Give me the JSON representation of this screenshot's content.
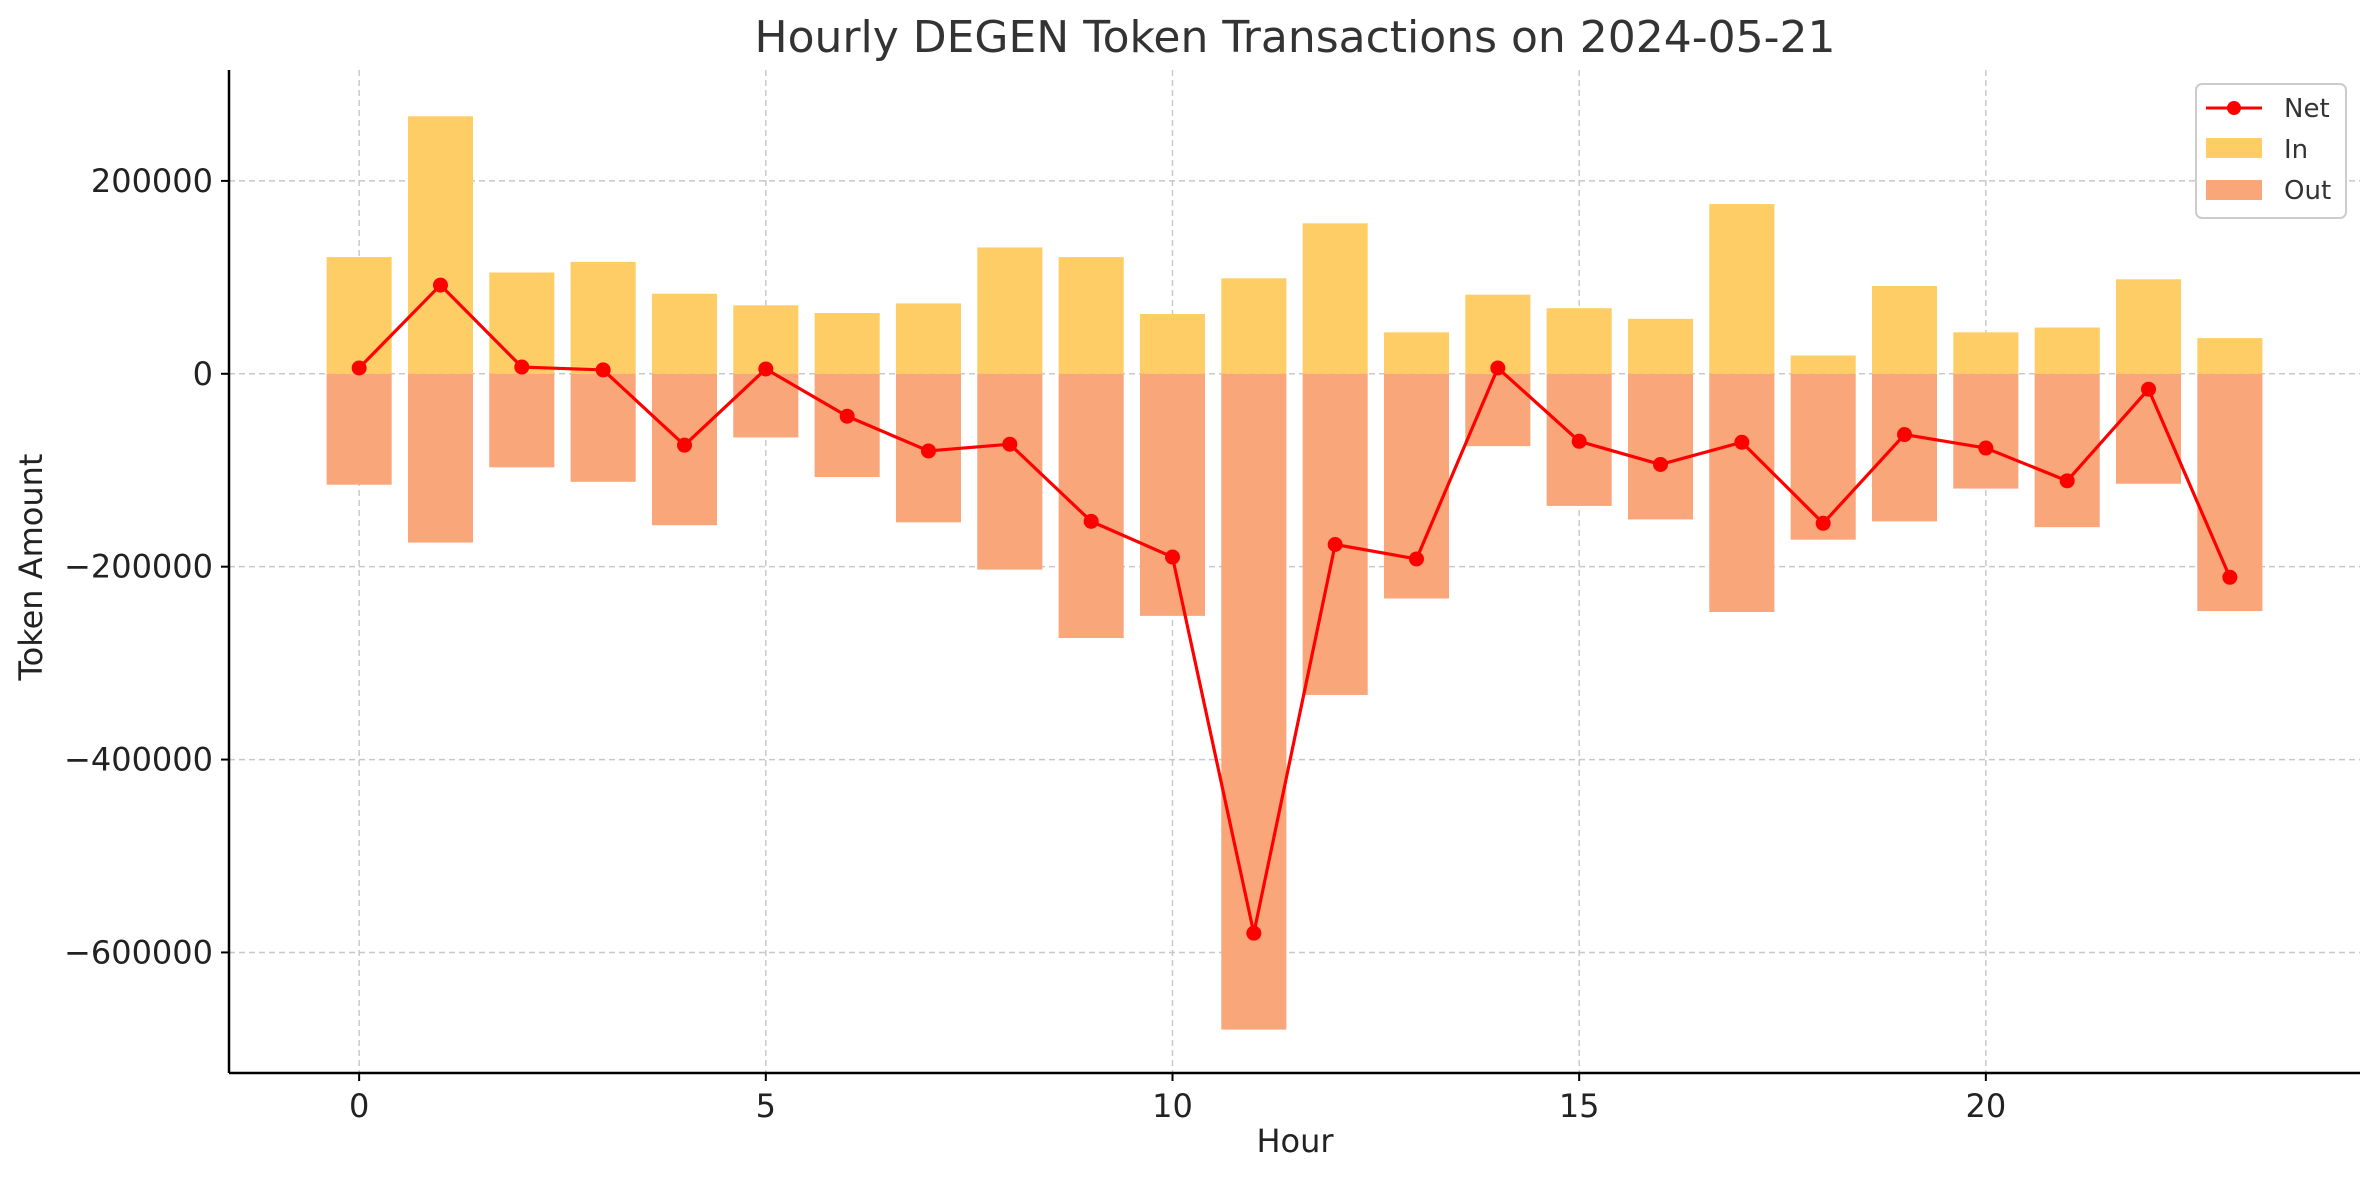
{
  "chart_data": {
    "type": "bar",
    "title": "Hourly DEGEN Token Transactions on 2024-05-21",
    "xlabel": "Hour",
    "ylabel": "Token Amount",
    "x": [
      0,
      1,
      2,
      3,
      4,
      5,
      6,
      7,
      8,
      9,
      10,
      11,
      12,
      13,
      14,
      15,
      16,
      17,
      18,
      19,
      20,
      21,
      22,
      23
    ],
    "xlim": [
      -1.6,
      24.6
    ],
    "ylim": [
      -725000,
      315000
    ],
    "x_ticks": [
      0,
      5,
      10,
      15,
      20
    ],
    "y_ticks": [
      200000,
      0,
      -200000,
      -400000,
      -600000
    ],
    "y_tick_labels": [
      "200000",
      "0",
      "−200000",
      "−400000",
      "−600000"
    ],
    "grid": true,
    "legend_position": "top-right",
    "series": [
      {
        "name": "Net",
        "kind": "line",
        "color": "#ff0000",
        "values": [
          6000,
          92000,
          7000,
          4000,
          -74000,
          5000,
          -44000,
          -80000,
          -73000,
          -153000,
          -190000,
          -580000,
          -177000,
          -192000,
          6000,
          -70000,
          -94000,
          -71000,
          -155000,
          -63000,
          -77000,
          -111000,
          -16000,
          -211000
        ]
      },
      {
        "name": "In",
        "kind": "bar",
        "color": "#ffcd65",
        "values": [
          121000,
          267000,
          105000,
          116000,
          83000,
          71000,
          63000,
          73000,
          131000,
          121000,
          62000,
          99000,
          156000,
          43000,
          82000,
          68000,
          57000,
          176000,
          19000,
          91000,
          43000,
          48000,
          98000,
          37000
        ]
      },
      {
        "name": "Out",
        "kind": "bar",
        "color": "#f8a67a",
        "values": [
          -115000,
          -175000,
          -97000,
          -112000,
          -157000,
          -66000,
          -107000,
          -154000,
          -203000,
          -274000,
          -251000,
          -680000,
          -333000,
          -233000,
          -75000,
          -137000,
          -151000,
          -247000,
          -172000,
          -153000,
          -119000,
          -159000,
          -114000,
          -246000
        ]
      }
    ]
  }
}
